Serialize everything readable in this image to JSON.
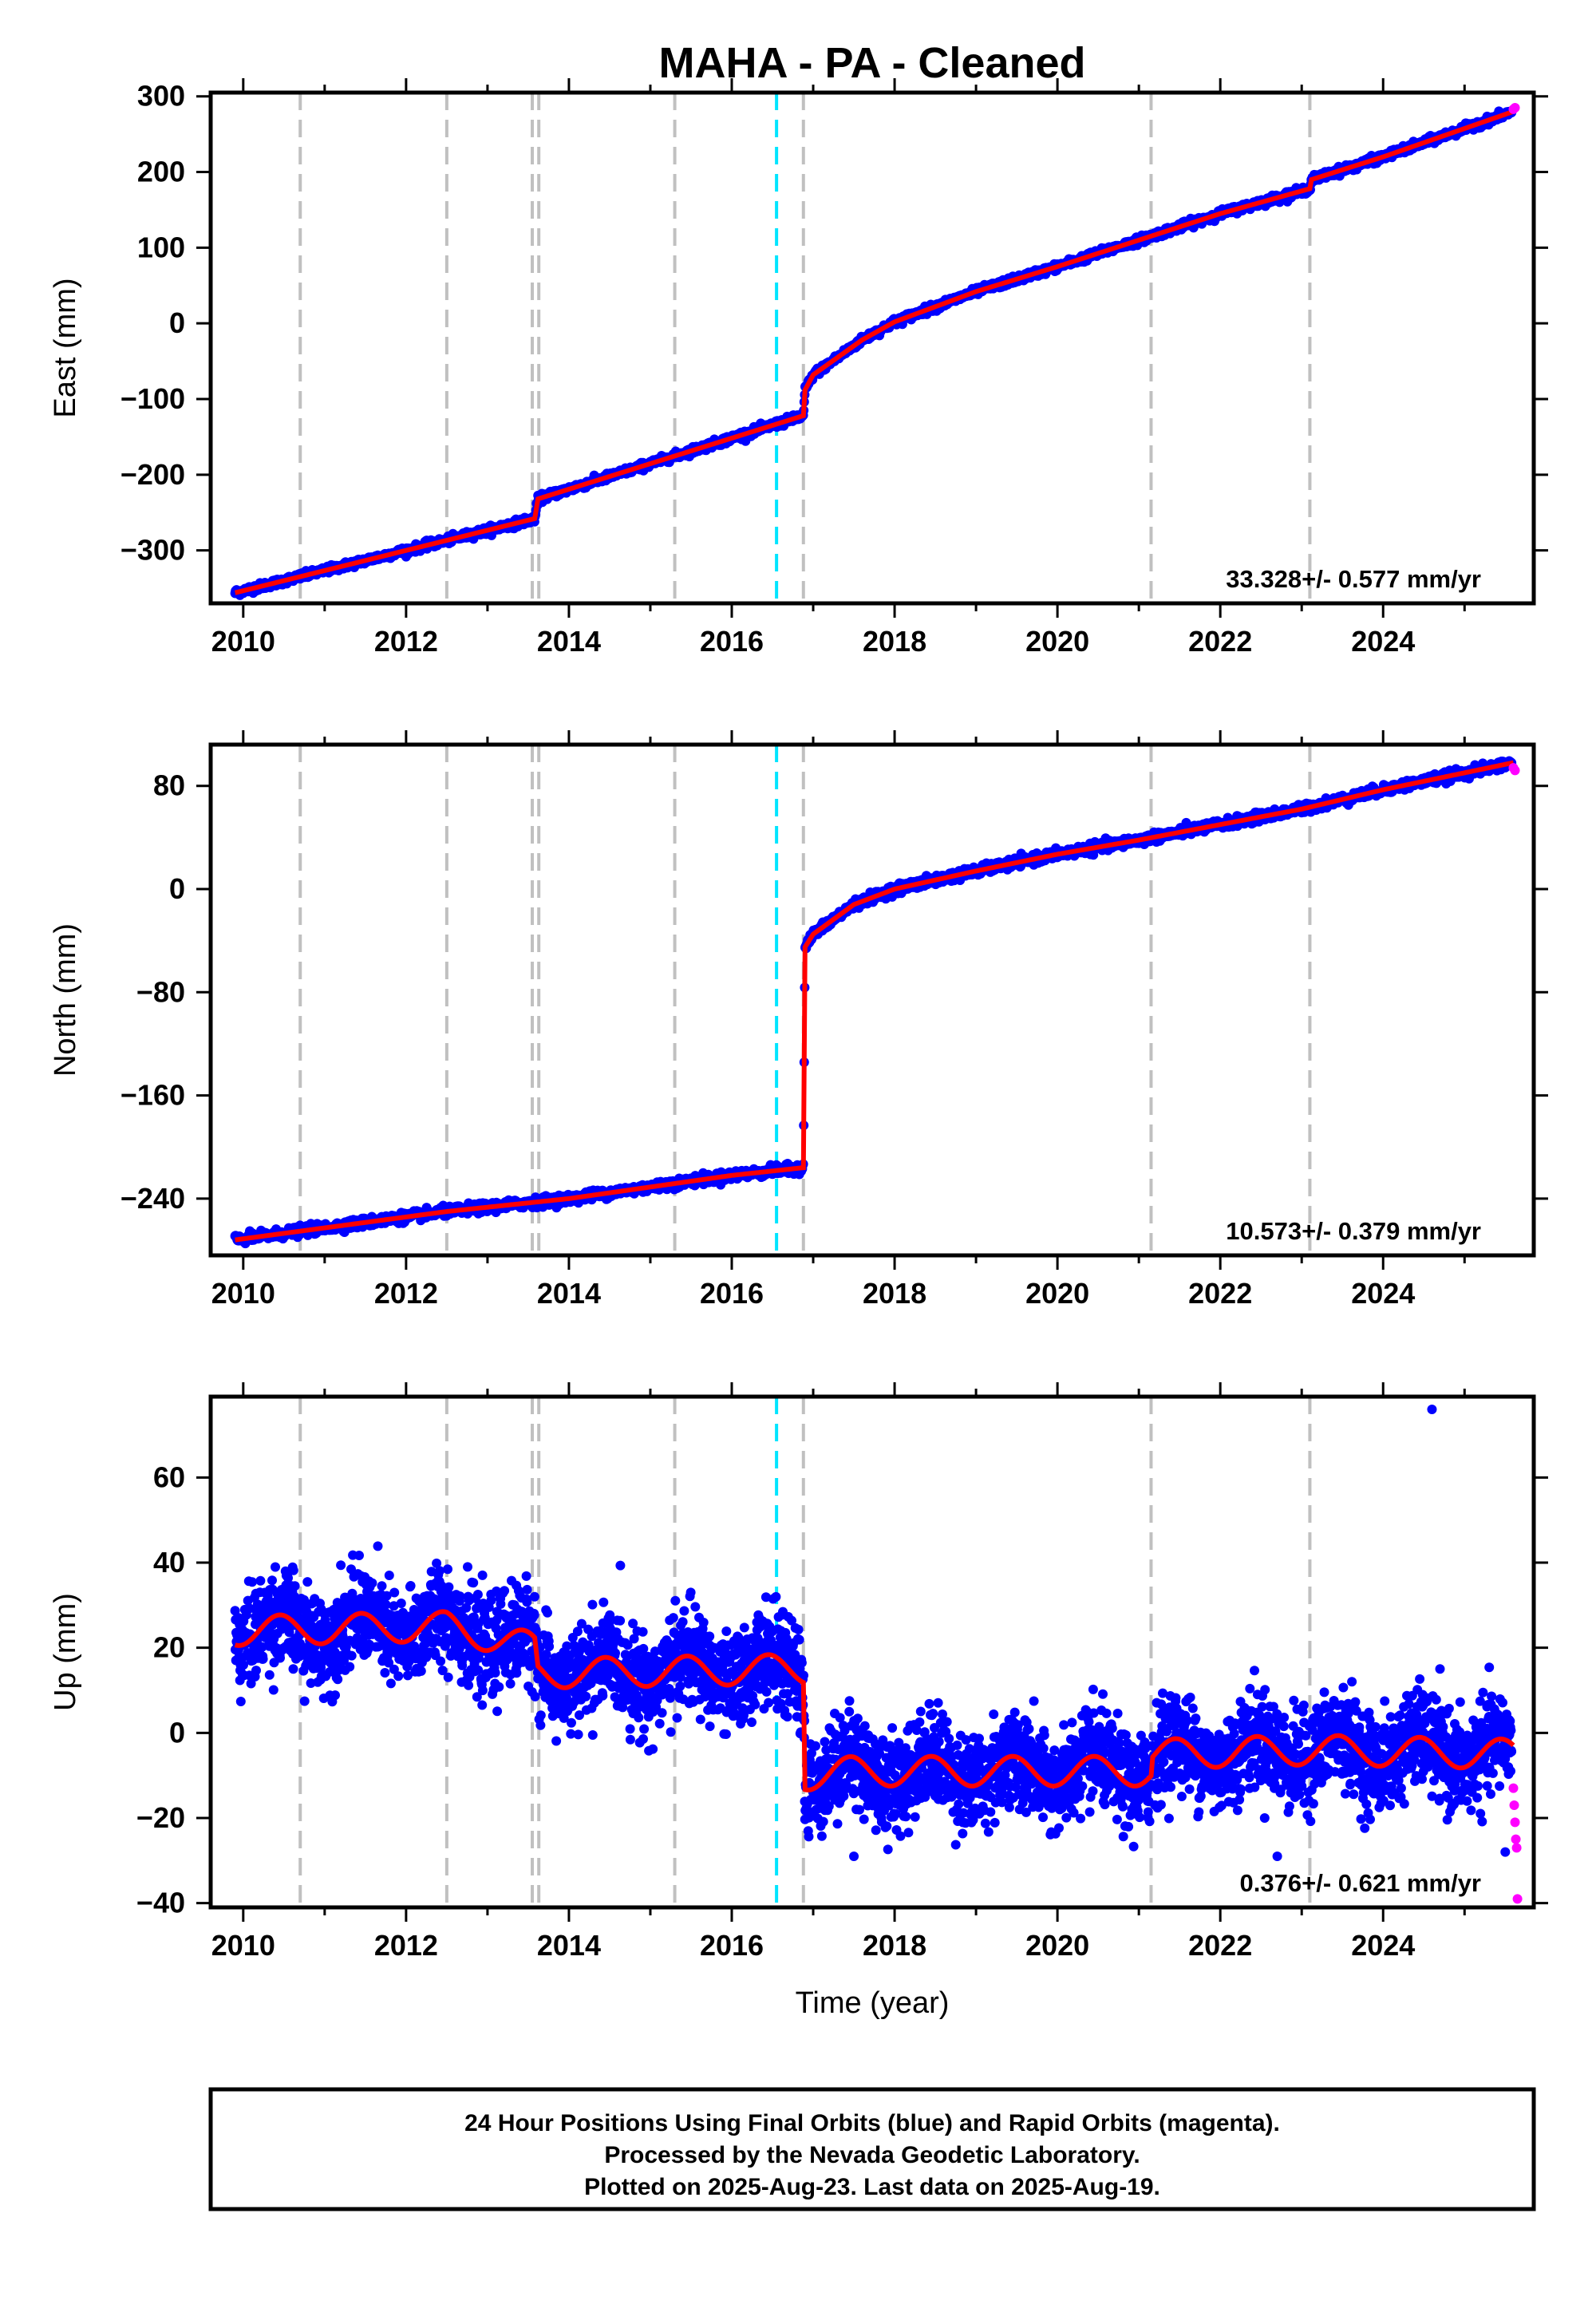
{
  "figure": {
    "title": "MAHA  - PA - Cleaned",
    "xlabel": "Time (year)",
    "footer": [
      "24 Hour Positions Using Final Orbits (blue) and Rapid Orbits (magenta).",
      "Processed by the Nevada Geodetic Laboratory.",
      "Plotted on 2025-Aug-23. Last data on 2025-Aug-19."
    ],
    "colors": {
      "final": "#0000ff",
      "rapid": "#ff00ff",
      "model": "#ff0000",
      "gray_event": "#c0c0c0",
      "cyan_event": "#00e5ff"
    }
  },
  "chart_data": [
    {
      "type": "scatter",
      "component": "east",
      "ylabel": "East (mm)",
      "xlim": [
        2009.6,
        2025.85
      ],
      "ylim": [
        -370,
        305
      ],
      "xticks": [
        2010,
        2012,
        2014,
        2016,
        2018,
        2020,
        2022,
        2024
      ],
      "yticks": [
        -300,
        -200,
        -100,
        0,
        100,
        200,
        300
      ],
      "yticklabels": [
        "−300",
        "−200",
        "−100",
        "0",
        "100",
        "200",
        "300"
      ],
      "rate_label": "33.328+/- 0.577 mm/yr",
      "gray_events": [
        2010.7,
        2012.5,
        2013.55,
        2013.63,
        2015.3,
        2016.88,
        2021.15,
        2023.1
      ],
      "cyan_events": [
        2016.55
      ],
      "trend": [
        [
          2009.9,
          -356
        ],
        [
          2013.58,
          -258
        ],
        [
          2013.62,
          -232
        ],
        [
          2016.88,
          -122
        ],
        [
          2016.9,
          -88
        ],
        [
          2017.0,
          -68
        ],
        [
          2017.3,
          -45
        ],
        [
          2017.6,
          -22
        ],
        [
          2018.0,
          2
        ],
        [
          2018.5,
          22
        ],
        [
          2019.0,
          42
        ],
        [
          2020.0,
          75
        ],
        [
          2021.0,
          110
        ],
        [
          2022.0,
          145
        ],
        [
          2023.1,
          178
        ],
        [
          2023.12,
          190
        ],
        [
          2024.0,
          220
        ],
        [
          2025.6,
          280
        ]
      ],
      "scatter_sd": 4,
      "outliers": [],
      "rapid": [
        [
          2025.6,
          283
        ],
        [
          2025.62,
          285
        ]
      ]
    },
    {
      "type": "scatter",
      "component": "north",
      "ylabel": "North (mm)",
      "xlim": [
        2009.6,
        2025.85
      ],
      "ylim": [
        -284,
        112
      ],
      "xticks": [
        2010,
        2012,
        2014,
        2016,
        2018,
        2020,
        2022,
        2024
      ],
      "yticks": [
        -240,
        -160,
        -80,
        0,
        80
      ],
      "yticklabels": [
        "−240",
        "−160",
        "−80",
        "0",
        "80"
      ],
      "rate_label": "10.573+/- 0.379 mm/yr",
      "gray_events": [
        2010.7,
        2012.5,
        2013.55,
        2013.63,
        2015.3,
        2016.88,
        2021.15,
        2023.1
      ],
      "cyan_events": [
        2016.55
      ],
      "trend": [
        [
          2009.9,
          -272
        ],
        [
          2012.5,
          -250
        ],
        [
          2014.0,
          -240
        ],
        [
          2016.0,
          -222
        ],
        [
          2016.88,
          -216
        ],
        [
          2016.9,
          -45
        ],
        [
          2017.0,
          -35
        ],
        [
          2017.5,
          -12
        ],
        [
          2018.0,
          0
        ],
        [
          2019.0,
          14
        ],
        [
          2020.0,
          27
        ],
        [
          2021.0,
          38
        ],
        [
          2022.0,
          50
        ],
        [
          2023.0,
          62
        ],
        [
          2024.0,
          77
        ],
        [
          2025.6,
          98
        ]
      ],
      "scatter_sd": 3,
      "outliers": [],
      "rapid": [
        [
          2025.6,
          94
        ],
        [
          2025.62,
          92
        ]
      ]
    },
    {
      "type": "scatter",
      "component": "up",
      "ylabel": "Up (mm)",
      "xlim": [
        2009.6,
        2025.85
      ],
      "ylim": [
        -41,
        79
      ],
      "xticks": [
        2010,
        2012,
        2014,
        2016,
        2018,
        2020,
        2022,
        2024
      ],
      "yticks": [
        -40,
        -20,
        0,
        20,
        40,
        60
      ],
      "yticklabels": [
        "−40",
        "−20",
        "0",
        "20",
        "40",
        "60"
      ],
      "rate_label": "0.376+/- 0.621 mm/yr",
      "gray_events": [
        2010.7,
        2012.5,
        2013.55,
        2013.63,
        2015.3,
        2016.88,
        2021.15,
        2023.1
      ],
      "cyan_events": [
        2016.55
      ],
      "trend_base": [
        [
          2009.9,
          24
        ],
        [
          2012.5,
          25
        ],
        [
          2013.58,
          20
        ],
        [
          2013.62,
          14
        ],
        [
          2016.88,
          15
        ],
        [
          2016.9,
          -10
        ],
        [
          2017.5,
          -9
        ],
        [
          2021.15,
          -9
        ],
        [
          2021.17,
          -5
        ],
        [
          2023.1,
          -4
        ],
        [
          2025.6,
          -5
        ]
      ],
      "seasonal_amp": 3.5,
      "scatter_sd": 5.5,
      "outliers": [
        [
          2024.6,
          76
        ],
        [
          2022.7,
          -29
        ],
        [
          2017.5,
          -29
        ],
        [
          2025.5,
          -28
        ]
      ],
      "rapid": [
        [
          2025.6,
          -13
        ],
        [
          2025.61,
          -17
        ],
        [
          2025.62,
          -21
        ],
        [
          2025.63,
          -25
        ],
        [
          2025.64,
          -27
        ],
        [
          2025.65,
          -39
        ]
      ]
    }
  ]
}
